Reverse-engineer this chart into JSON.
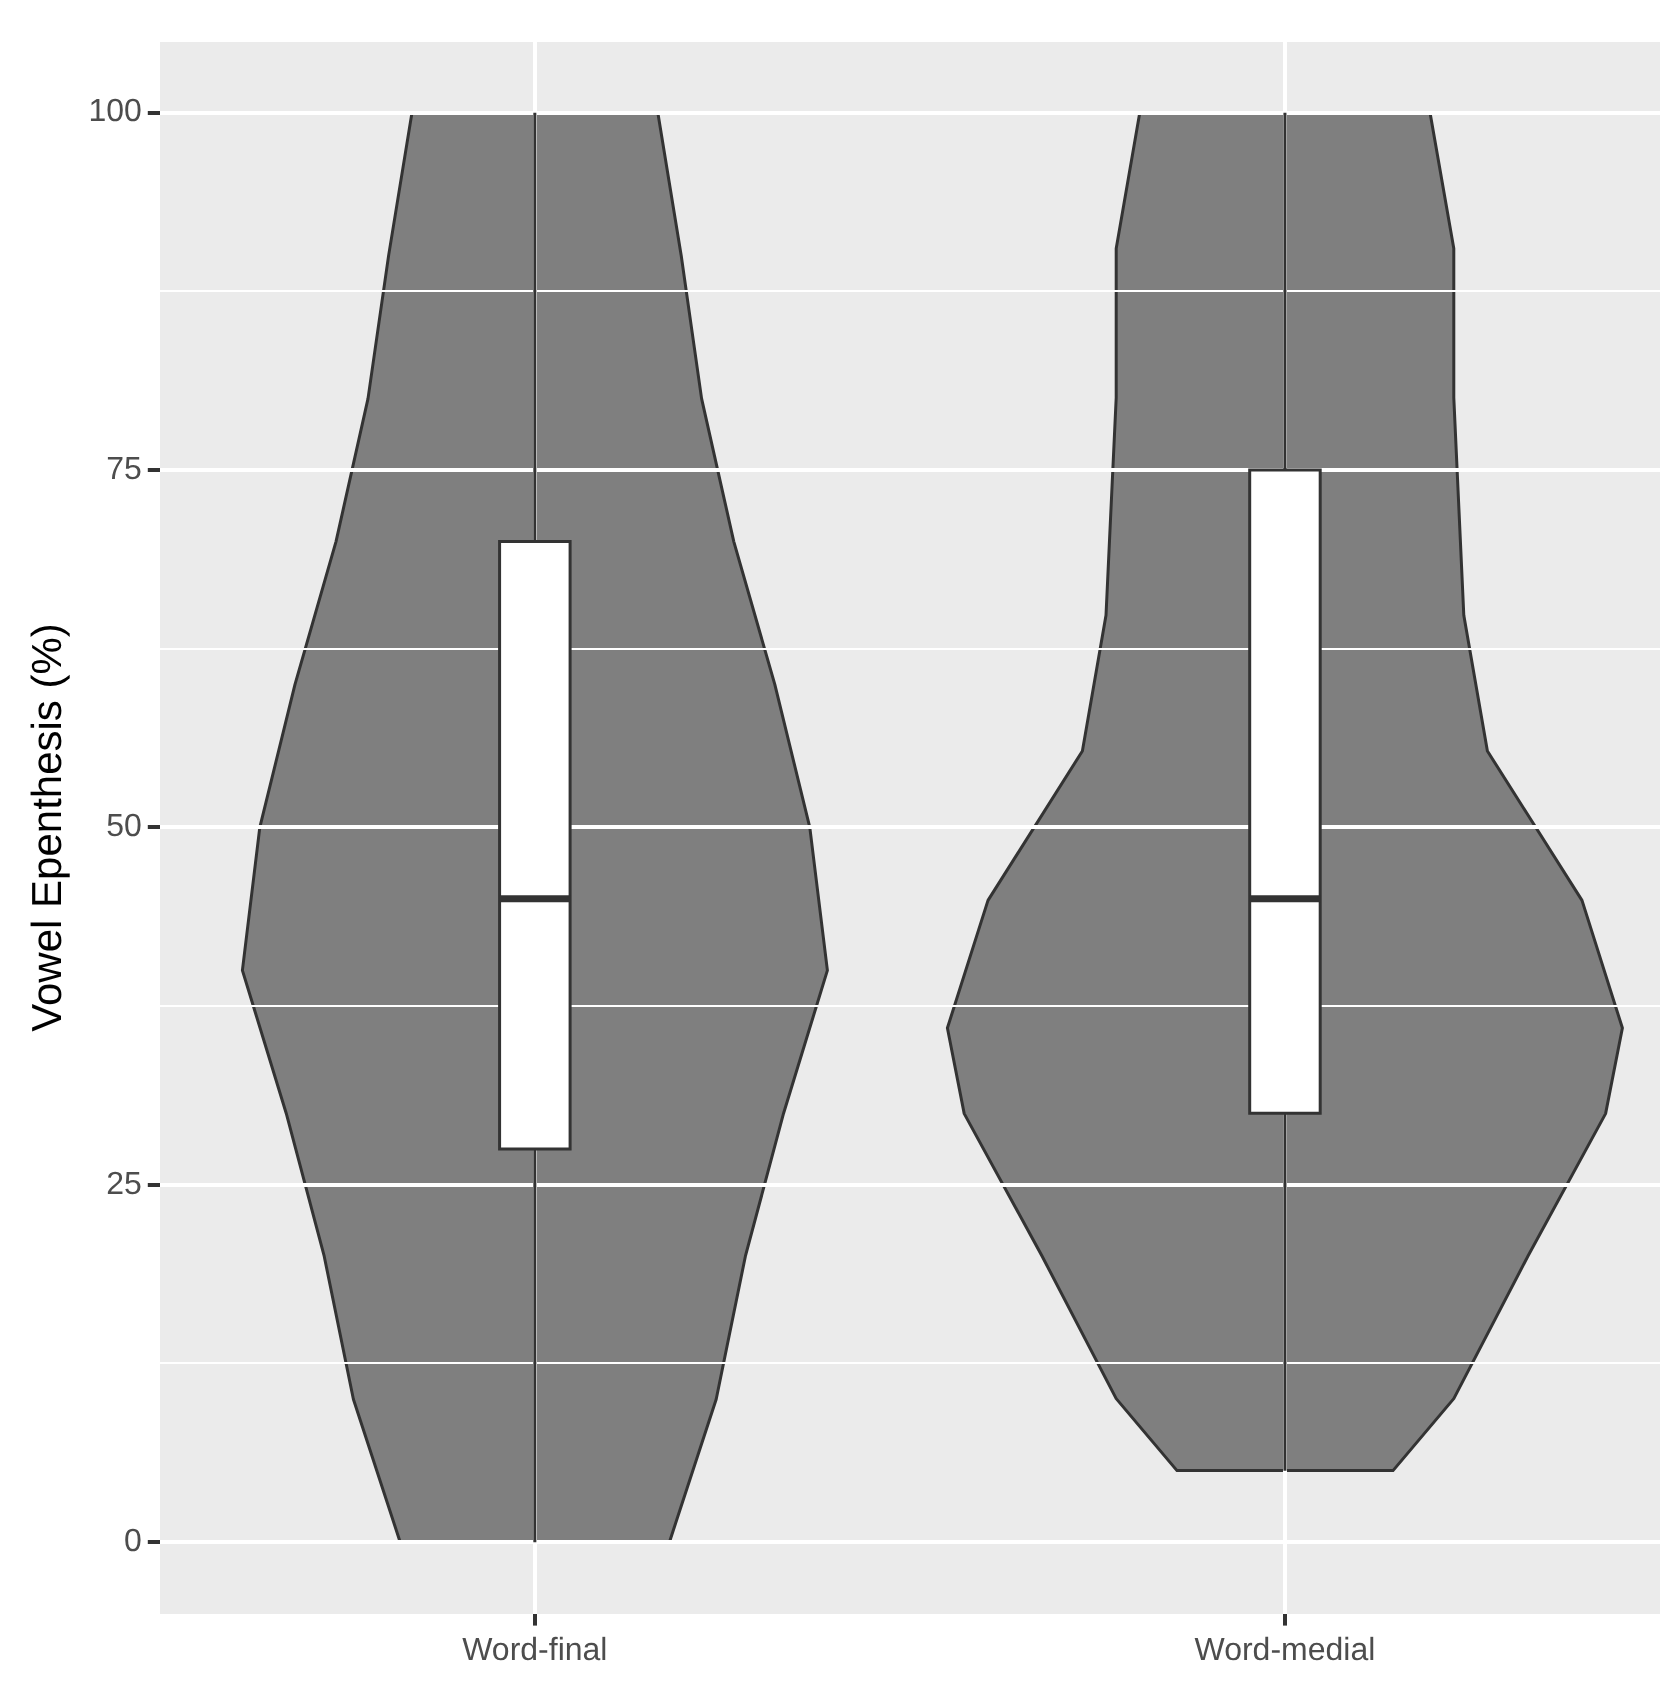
{
  "chart_data": {
    "type": "box",
    "ylabel": "Vowel Epenthesis (%)",
    "categories": [
      "Word-final",
      "Word-medial"
    ],
    "boxes": [
      {
        "low": 0,
        "q1": 27.5,
        "median": 45,
        "q3": 70,
        "high": 100
      },
      {
        "low": 5,
        "q1": 30,
        "median": 45,
        "q3": 75,
        "high": 100
      }
    ],
    "color": "#ffffff",
    "ylim": [
      -5,
      105
    ],
    "yticks": [
      0,
      {
        "value": 12.5,
        "label": null
      },
      25,
      {
        "value": 37.5,
        "label": null
      },
      50,
      {
        "value": 62.5,
        "label": null
      },
      75,
      {
        "value": 87.5,
        "label": null
      },
      100
    ],
    "grid": true,
    "legend": false
  }
}
